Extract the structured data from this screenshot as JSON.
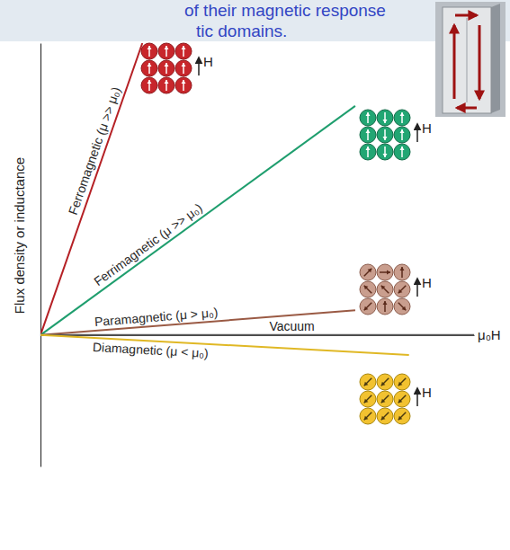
{
  "chart_data": {
    "type": "line",
    "title": "of their magnetic response",
    "subtitle": "tic domains.",
    "x_label": "μ₀H",
    "y_label": "Flux density or inductance",
    "xlim": [
      0,
      10
    ],
    "ylim": [
      -4.5,
      10
    ],
    "tick_labels": false,
    "grid": false,
    "annotations": [
      "H",
      "H",
      "H",
      "H"
    ],
    "series": [
      {
        "name": "Ferromagnetic (μ >> μ₀)",
        "color": "#b52025",
        "x": [
          0,
          2.35
        ],
        "values": [
          0,
          10
        ]
      },
      {
        "name": "Ferrimagnetic (μ >> μ₀)",
        "color": "#1f9e6e",
        "x": [
          0,
          7.26
        ],
        "values": [
          0,
          7.85
        ]
      },
      {
        "name": "Paramagnetic (μ > μ₀)",
        "color": "#9a5a44",
        "x": [
          0,
          7.26
        ],
        "values": [
          0,
          0.85
        ]
      },
      {
        "name": "Vacuum",
        "color": "#555555",
        "x": [
          0,
          10
        ],
        "values": [
          0,
          0
        ]
      },
      {
        "name": "Diamagnetic (μ < μ₀)",
        "color": "#e0b825",
        "x": [
          0,
          8.5
        ],
        "values": [
          0,
          -0.68
        ]
      }
    ]
  }
}
